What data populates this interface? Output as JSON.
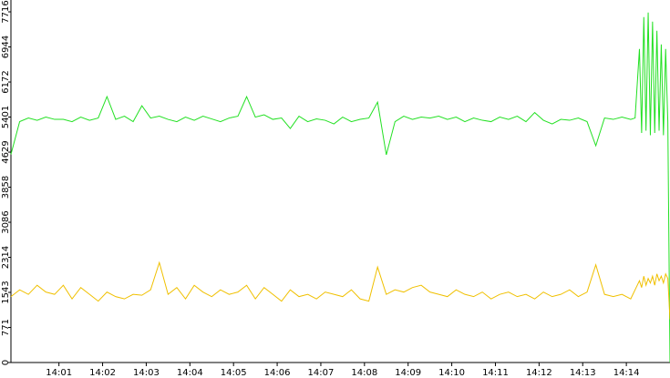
{
  "chart_data": {
    "type": "line",
    "x": [
      -0.1,
      0.1,
      0.3,
      0.5,
      0.7,
      0.9,
      1.1,
      1.3,
      1.5,
      1.7,
      1.9,
      2.1,
      2.3,
      2.5,
      2.7,
      2.9,
      3.1,
      3.3,
      3.5,
      3.7,
      3.9,
      4.1,
      4.3,
      4.5,
      4.7,
      4.9,
      5.1,
      5.3,
      5.5,
      5.7,
      5.9,
      6.1,
      6.3,
      6.5,
      6.7,
      6.9,
      7.1,
      7.3,
      7.5,
      7.7,
      7.9,
      8.1,
      8.3,
      8.5,
      8.7,
      8.9,
      9.1,
      9.3,
      9.5,
      9.7,
      9.9,
      10.1,
      10.3,
      10.5,
      10.7,
      10.9,
      11.1,
      11.3,
      11.5,
      11.7,
      11.9,
      12.1,
      12.3,
      12.5,
      12.7,
      12.9,
      13.1,
      13.3,
      13.5,
      13.7,
      13.9,
      14.1,
      14.2,
      14.3,
      14.35,
      14.4,
      14.45,
      14.5,
      14.55,
      14.6,
      14.65,
      14.7,
      14.75,
      14.8,
      14.85,
      14.9,
      14.95,
      15.0
    ],
    "series": [
      {
        "color": "#22e022",
        "values": [
          4580,
          5300,
          5380,
          5330,
          5400,
          5350,
          5350,
          5300,
          5400,
          5330,
          5380,
          5850,
          5350,
          5420,
          5300,
          5650,
          5380,
          5420,
          5350,
          5300,
          5400,
          5330,
          5420,
          5360,
          5300,
          5380,
          5420,
          5850,
          5400,
          5450,
          5350,
          5380,
          5150,
          5420,
          5300,
          5360,
          5330,
          5250,
          5400,
          5300,
          5350,
          5380,
          5730,
          4570,
          5300,
          5420,
          5350,
          5400,
          5380,
          5420,
          5350,
          5400,
          5300,
          5380,
          5330,
          5300,
          5400,
          5350,
          5420,
          5300,
          5500,
          5330,
          5250,
          5350,
          5330,
          5380,
          5300,
          4770,
          5380,
          5350,
          5400,
          5350,
          5380,
          6900,
          5050,
          7600,
          5100,
          7700,
          5000,
          7500,
          5050,
          7300,
          5100,
          7000,
          5000,
          6900,
          5300,
          0
        ]
      },
      {
        "color": "#f0c000",
        "values": [
          1450,
          1600,
          1500,
          1700,
          1550,
          1500,
          1700,
          1400,
          1650,
          1500,
          1350,
          1550,
          1450,
          1400,
          1500,
          1480,
          1600,
          2200,
          1500,
          1650,
          1400,
          1700,
          1550,
          1450,
          1600,
          1500,
          1550,
          1700,
          1400,
          1650,
          1500,
          1350,
          1600,
          1450,
          1500,
          1400,
          1550,
          1500,
          1450,
          1600,
          1400,
          1350,
          2100,
          1500,
          1600,
          1550,
          1650,
          1700,
          1550,
          1500,
          1450,
          1600,
          1500,
          1450,
          1550,
          1400,
          1500,
          1550,
          1450,
          1500,
          1400,
          1550,
          1450,
          1500,
          1600,
          1450,
          1550,
          2150,
          1500,
          1450,
          1500,
          1400,
          1600,
          1800,
          1650,
          1900,
          1700,
          1850,
          1750,
          1900,
          1700,
          1950,
          1800,
          1900,
          1750,
          1950,
          1850,
          950
        ]
      }
    ],
    "xlim": [
      -0.1,
      15.0
    ],
    "xticks": [
      {
        "value": 1,
        "label": "14:01"
      },
      {
        "value": 2,
        "label": "14:02"
      },
      {
        "value": 3,
        "label": "14:03"
      },
      {
        "value": 4,
        "label": "14:04"
      },
      {
        "value": 5,
        "label": "14:05"
      },
      {
        "value": 6,
        "label": "14:06"
      },
      {
        "value": 7,
        "label": "14:07"
      },
      {
        "value": 8,
        "label": "14:08"
      },
      {
        "value": 9,
        "label": "14:09"
      },
      {
        "value": 10,
        "label": "14:10"
      },
      {
        "value": 11,
        "label": "14:11"
      },
      {
        "value": 12,
        "label": "14:12"
      },
      {
        "value": 13,
        "label": "14:13"
      },
      {
        "value": 14,
        "label": "14:14"
      }
    ],
    "ylim": [
      0,
      7716
    ],
    "yticks": [
      0,
      771,
      1543,
      2314,
      3086,
      3858,
      4629,
      5401,
      6172,
      6944,
      7716
    ]
  }
}
